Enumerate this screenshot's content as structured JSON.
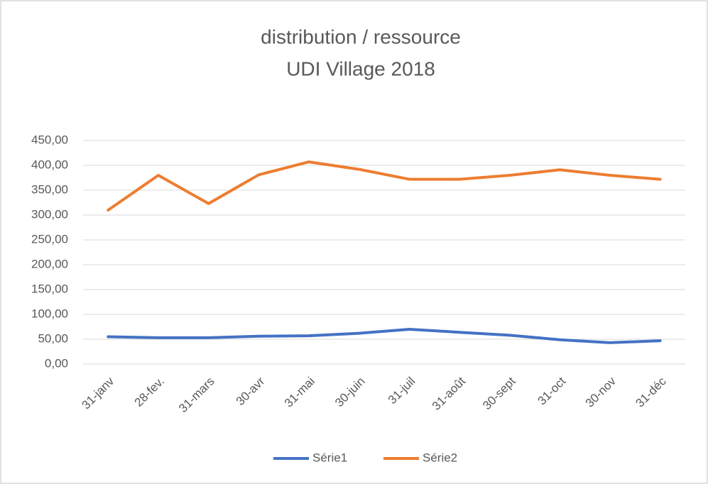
{
  "chart_data": {
    "type": "line",
    "title": "distribution / ressource",
    "subtitle": "UDI Village 2018",
    "categories": [
      "31-janv",
      "28-fev.",
      "31-mars",
      "30-avr",
      "31-mai",
      "30-juin",
      "31-juil",
      "31-août",
      "30-sept",
      "31-oct",
      "30-nov",
      "31-déc"
    ],
    "series": [
      {
        "name": "Série1",
        "color": "#4472c4",
        "values": [
          55,
          53,
          53,
          56,
          57,
          62,
          70,
          64,
          58,
          49,
          43,
          47
        ]
      },
      {
        "name": "Série2",
        "color": "#ed7d31",
        "values": [
          310,
          380,
          323,
          381,
          407,
          392,
          372,
          372,
          380,
          391,
          380,
          372
        ]
      }
    ],
    "ylim": [
      0,
      450
    ],
    "yticks": [
      {
        "value": 0,
        "label": "0,00"
      },
      {
        "value": 50,
        "label": "50,00"
      },
      {
        "value": 100,
        "label": "100,00"
      },
      {
        "value": 150,
        "label": "150,00"
      },
      {
        "value": 200,
        "label": "200,00"
      },
      {
        "value": 250,
        "label": "250,00"
      },
      {
        "value": 300,
        "label": "300,00"
      },
      {
        "value": 350,
        "label": "350,00"
      },
      {
        "value": 400,
        "label": "400,00"
      },
      {
        "value": 450,
        "label": "450,00"
      }
    ],
    "grid": true,
    "legend": "bottom"
  }
}
